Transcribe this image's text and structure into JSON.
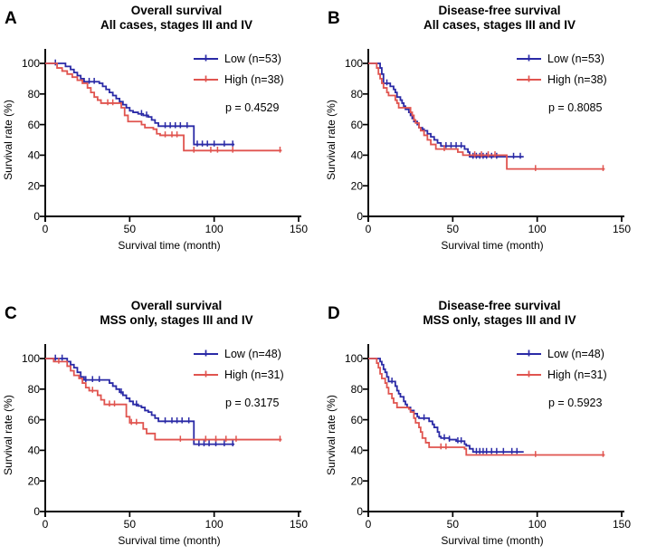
{
  "figure": {
    "background_color": "#ffffff",
    "text_color": "#000000",
    "axis_color": "#000000",
    "low_color": "#2a2aa6",
    "high_color": "#e0544f"
  },
  "chart_data": [
    {
      "type": "line",
      "subtype": "kaplan-meier-step",
      "panel_letter": "A",
      "title": "Overall survival",
      "subtitle": "All cases, stages III and IV",
      "p_label": "p = 0.4529",
      "xlabel": "Survival time (month)",
      "ylabel": "Survival rate (%)",
      "xlim": [
        0,
        150
      ],
      "ylim": [
        0,
        100
      ],
      "xticks": [
        0,
        50,
        100,
        150
      ],
      "yticks": [
        0,
        20,
        40,
        60,
        80,
        100
      ],
      "legend_position": "top-right",
      "series": [
        {
          "name": "Low (n=53)",
          "color": "#2a2aa6",
          "steps": [
            [
              0,
              100
            ],
            [
              12,
              98
            ],
            [
              15,
              96
            ],
            [
              17,
              94
            ],
            [
              19,
              92
            ],
            [
              21,
              90
            ],
            [
              23,
              88
            ],
            [
              32,
              87
            ],
            [
              34,
              85
            ],
            [
              36,
              83
            ],
            [
              38,
              81
            ],
            [
              40,
              79
            ],
            [
              42,
              77
            ],
            [
              44,
              75
            ],
            [
              46,
              73
            ],
            [
              48,
              71
            ],
            [
              50,
              69
            ],
            [
              52,
              68
            ],
            [
              55,
              67
            ],
            [
              58,
              66
            ],
            [
              61,
              65
            ],
            [
              63,
              63
            ],
            [
              65,
              61
            ],
            [
              67,
              59
            ],
            [
              88,
              47
            ],
            [
              112,
              47
            ]
          ],
          "censors": [
            6,
            26,
            29,
            57,
            60,
            71,
            74,
            77,
            80,
            84,
            90,
            93,
            96,
            100,
            106,
            111
          ]
        },
        {
          "name": "High (n=38)",
          "color": "#e0544f",
          "steps": [
            [
              0,
              100
            ],
            [
              7,
              97
            ],
            [
              10,
              95
            ],
            [
              13,
              93
            ],
            [
              16,
              91
            ],
            [
              19,
              89
            ],
            [
              22,
              87
            ],
            [
              25,
              84
            ],
            [
              27,
              81
            ],
            [
              29,
              78
            ],
            [
              31,
              76
            ],
            [
              33,
              74
            ],
            [
              45,
              71
            ],
            [
              47,
              66
            ],
            [
              49,
              62
            ],
            [
              57,
              60
            ],
            [
              59,
              58
            ],
            [
              64,
              57
            ],
            [
              66,
              54
            ],
            [
              68,
              53
            ],
            [
              82,
              43
            ],
            [
              140,
              43
            ]
          ],
          "censors": [
            37,
            40,
            71,
            75,
            78,
            88,
            98,
            102,
            111,
            139
          ]
        }
      ]
    },
    {
      "type": "line",
      "subtype": "kaplan-meier-step",
      "panel_letter": "B",
      "title": "Disease-free survival",
      "subtitle": "All cases, stages III and IV",
      "p_label": "p = 0.8085",
      "xlabel": "Survival time (month)",
      "ylabel": "Survival rate (%)",
      "xlim": [
        0,
        150
      ],
      "ylim": [
        0,
        100
      ],
      "xticks": [
        0,
        50,
        100,
        150
      ],
      "yticks": [
        0,
        20,
        40,
        60,
        80,
        100
      ],
      "legend_position": "top-right",
      "series": [
        {
          "name": "Low (n=53)",
          "color": "#2a2aa6",
          "steps": [
            [
              0,
              100
            ],
            [
              7,
              97
            ],
            [
              8,
              93
            ],
            [
              9,
              87
            ],
            [
              13,
              85
            ],
            [
              15,
              83
            ],
            [
              16,
              81
            ],
            [
              17,
              78
            ],
            [
              19,
              76
            ],
            [
              20,
              74
            ],
            [
              21,
              72
            ],
            [
              22,
              70
            ],
            [
              24,
              68
            ],
            [
              25,
              66
            ],
            [
              26,
              64
            ],
            [
              27,
              62
            ],
            [
              29,
              60
            ],
            [
              30,
              58
            ],
            [
              32,
              57
            ],
            [
              33,
              56
            ],
            [
              35,
              54
            ],
            [
              37,
              52
            ],
            [
              39,
              50
            ],
            [
              41,
              48
            ],
            [
              43,
              46
            ],
            [
              57,
              44
            ],
            [
              59,
              42
            ],
            [
              60,
              39
            ],
            [
              92,
              39
            ]
          ],
          "censors": [
            11,
            46,
            49,
            52,
            55,
            62,
            64,
            66,
            68,
            70,
            73,
            76,
            86,
            90
          ]
        },
        {
          "name": "High (n=38)",
          "color": "#e0544f",
          "steps": [
            [
              0,
              100
            ],
            [
              5,
              97
            ],
            [
              6,
              93
            ],
            [
              7,
              90
            ],
            [
              8,
              87
            ],
            [
              9,
              84
            ],
            [
              11,
              81
            ],
            [
              12,
              79
            ],
            [
              16,
              76
            ],
            [
              17,
              74
            ],
            [
              18,
              71
            ],
            [
              25,
              68
            ],
            [
              26,
              66
            ],
            [
              27,
              63
            ],
            [
              28,
              61
            ],
            [
              30,
              58
            ],
            [
              31,
              56
            ],
            [
              33,
              53
            ],
            [
              35,
              50
            ],
            [
              37,
              47
            ],
            [
              40,
              44
            ],
            [
              53,
              42
            ],
            [
              56,
              40
            ],
            [
              82,
              31
            ],
            [
              140,
              31
            ]
          ],
          "censors": [
            45,
            63,
            67,
            71,
            75,
            99,
            139
          ]
        }
      ]
    },
    {
      "type": "line",
      "subtype": "kaplan-meier-step",
      "panel_letter": "C",
      "title": "Overall survival",
      "subtitle": "MSS only, stages III and IV",
      "p_label": "p = 0.3175",
      "xlabel": "Survival time (month)",
      "ylabel": "Survival rate (%)",
      "xlim": [
        0,
        150
      ],
      "ylim": [
        0,
        100
      ],
      "xticks": [
        0,
        50,
        100,
        150
      ],
      "yticks": [
        0,
        20,
        40,
        60,
        80,
        100
      ],
      "legend_position": "top-right",
      "series": [
        {
          "name": "Low (n=48)",
          "color": "#2a2aa6",
          "steps": [
            [
              0,
              100
            ],
            [
              13,
              98
            ],
            [
              15,
              96
            ],
            [
              17,
              94
            ],
            [
              19,
              91
            ],
            [
              21,
              88
            ],
            [
              23,
              86
            ],
            [
              38,
              84
            ],
            [
              40,
              82
            ],
            [
              42,
              80
            ],
            [
              44,
              78
            ],
            [
              46,
              76
            ],
            [
              48,
              74
            ],
            [
              50,
              72
            ],
            [
              52,
              70
            ],
            [
              55,
              69
            ],
            [
              57,
              68
            ],
            [
              59,
              66
            ],
            [
              61,
              65
            ],
            [
              63,
              63
            ],
            [
              65,
              61
            ],
            [
              67,
              59
            ],
            [
              88,
              44
            ],
            [
              112,
              44
            ]
          ],
          "censors": [
            6,
            10,
            24,
            28,
            32,
            45,
            54,
            71,
            75,
            78,
            81,
            85,
            91,
            94,
            97,
            101,
            106,
            111
          ]
        },
        {
          "name": "High (n=31)",
          "color": "#e0544f",
          "steps": [
            [
              0,
              100
            ],
            [
              5,
              98
            ],
            [
              13,
              95
            ],
            [
              15,
              92
            ],
            [
              17,
              89
            ],
            [
              20,
              87
            ],
            [
              22,
              84
            ],
            [
              24,
              81
            ],
            [
              26,
              79
            ],
            [
              31,
              76
            ],
            [
              33,
              73
            ],
            [
              35,
              70
            ],
            [
              48,
              62
            ],
            [
              50,
              58
            ],
            [
              58,
              54
            ],
            [
              60,
              51
            ],
            [
              65,
              47
            ],
            [
              140,
              47
            ]
          ],
          "censors": [
            8,
            28,
            38,
            41,
            51,
            54,
            80,
            95,
            101,
            107,
            113,
            139
          ]
        }
      ]
    },
    {
      "type": "line",
      "subtype": "kaplan-meier-step",
      "panel_letter": "D",
      "title": "Disease-free survival",
      "subtitle": "MSS only, stages III and IV",
      "p_label": "p = 0.5923",
      "xlabel": "Survival time (month)",
      "ylabel": "Survival rate (%)",
      "xlim": [
        0,
        150
      ],
      "ylim": [
        0,
        100
      ],
      "xticks": [
        0,
        50,
        100,
        150
      ],
      "yticks": [
        0,
        20,
        40,
        60,
        80,
        100
      ],
      "legend_position": "top-right",
      "series": [
        {
          "name": "Low (n=48)",
          "color": "#2a2aa6",
          "steps": [
            [
              0,
              100
            ],
            [
              7,
              98
            ],
            [
              8,
              96
            ],
            [
              9,
              93
            ],
            [
              10,
              91
            ],
            [
              11,
              88
            ],
            [
              12,
              85
            ],
            [
              16,
              82
            ],
            [
              17,
              79
            ],
            [
              18,
              77
            ],
            [
              19,
              75
            ],
            [
              21,
              72
            ],
            [
              22,
              70
            ],
            [
              23,
              68
            ],
            [
              25,
              66
            ],
            [
              27,
              64
            ],
            [
              29,
              62
            ],
            [
              30,
              61
            ],
            [
              36,
              59
            ],
            [
              38,
              57
            ],
            [
              39,
              55
            ],
            [
              41,
              52
            ],
            [
              42,
              49
            ],
            [
              43,
              48
            ],
            [
              48,
              47
            ],
            [
              52,
              46
            ],
            [
              57,
              44
            ],
            [
              58,
              43
            ],
            [
              60,
              41
            ],
            [
              62,
              39
            ],
            [
              92,
              39
            ]
          ],
          "censors": [
            14,
            33,
            45,
            48,
            53,
            55,
            64,
            66,
            68,
            70,
            73,
            76,
            80,
            85,
            88
          ]
        },
        {
          "name": "High (n=31)",
          "color": "#e0544f",
          "steps": [
            [
              0,
              100
            ],
            [
              5,
              97
            ],
            [
              6,
              94
            ],
            [
              7,
              90
            ],
            [
              8,
              87
            ],
            [
              10,
              84
            ],
            [
              11,
              81
            ],
            [
              12,
              77
            ],
            [
              14,
              74
            ],
            [
              15,
              71
            ],
            [
              17,
              68
            ],
            [
              24,
              67
            ],
            [
              25,
              65
            ],
            [
              27,
              61
            ],
            [
              28,
              58
            ],
            [
              30,
              55
            ],
            [
              31,
              52
            ],
            [
              32,
              48
            ],
            [
              34,
              45
            ],
            [
              36,
              42
            ],
            [
              57,
              41
            ],
            [
              58,
              37
            ],
            [
              140,
              37
            ]
          ],
          "censors": [
            43,
            46,
            99,
            139
          ]
        }
      ]
    }
  ]
}
